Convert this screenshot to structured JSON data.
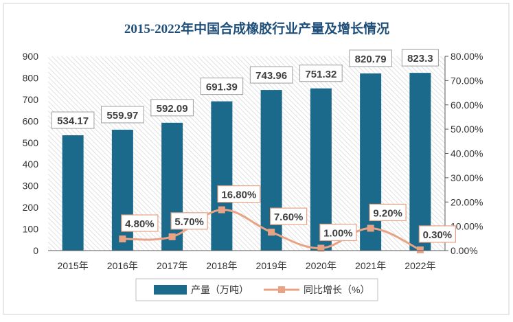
{
  "chart_data": {
    "type": "bar",
    "title": "2015-2022年中国合成橡胶行业产量及增长情况",
    "categories": [
      "2015年",
      "2016年",
      "2017年",
      "2018年",
      "2019年",
      "2020年",
      "2021年",
      "2022年"
    ],
    "series": [
      {
        "name": "产量（万吨）",
        "type": "bar",
        "axis": "left",
        "values": [
          534.17,
          559.97,
          592.09,
          691.39,
          743.96,
          751.32,
          820.79,
          823.3
        ],
        "labels": [
          "534.17",
          "559.97",
          "592.09",
          "691.39",
          "743.96",
          "751.32",
          "820.79",
          "823.3"
        ]
      },
      {
        "name": "同比增长（%）",
        "type": "line",
        "axis": "right",
        "values": [
          null,
          4.8,
          5.7,
          16.8,
          7.6,
          1.0,
          9.2,
          0.3
        ],
        "labels": [
          "",
          "4.80%",
          "5.70%",
          "16.80%",
          "7.60%",
          "1.00%",
          "9.20%",
          "0.30%"
        ]
      }
    ],
    "y_left": {
      "range": [
        0,
        900
      ],
      "ticks": [
        0,
        100,
        200,
        300,
        400,
        500,
        600,
        700,
        800,
        900
      ],
      "tick_labels": [
        "0",
        "100",
        "200",
        "300",
        "400",
        "500",
        "600",
        "700",
        "800",
        "900"
      ]
    },
    "y_right": {
      "range": [
        0,
        80
      ],
      "ticks": [
        0,
        10,
        20,
        30,
        40,
        50,
        60,
        70,
        80
      ],
      "tick_labels": [
        "0.00%",
        "10.00%",
        "20.00%",
        "30.00%",
        "40.00%",
        "50.00%",
        "60.00%",
        "70.00%",
        "80.00%"
      ]
    },
    "grid": false,
    "legend_position": "bottom",
    "colors": {
      "bar": "#1b6a8c",
      "line": "#e8a384",
      "title": "#1f4e79",
      "label_border": "#e8a384"
    }
  }
}
